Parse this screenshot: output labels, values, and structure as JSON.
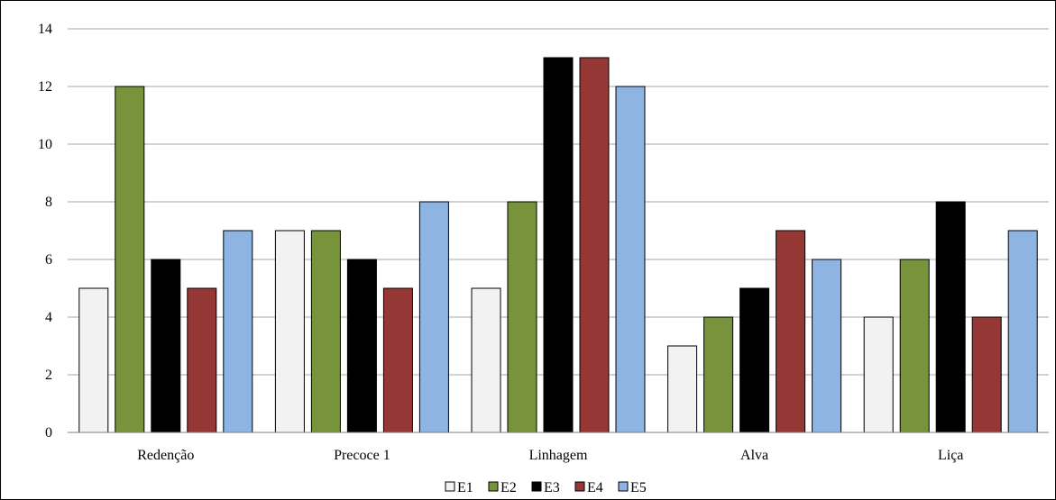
{
  "chart_data": {
    "type": "bar",
    "categories": [
      "Redenção",
      "Precoce 1",
      "Linhagem",
      "Alva",
      "Liça"
    ],
    "series": [
      {
        "name": "E1",
        "values": [
          5,
          7,
          5,
          3,
          4
        ],
        "color": "#f2f2f2"
      },
      {
        "name": "E2",
        "values": [
          12,
          7,
          8,
          4,
          6
        ],
        "color": "#77933c"
      },
      {
        "name": "E3",
        "values": [
          6,
          6,
          13,
          5,
          8
        ],
        "color": "#000000"
      },
      {
        "name": "E4",
        "values": [
          5,
          5,
          13,
          7,
          4
        ],
        "color": "#953735"
      },
      {
        "name": "E5",
        "values": [
          7,
          8,
          12,
          6,
          7
        ],
        "color": "#8eb4e3"
      }
    ],
    "ylim": [
      0,
      14
    ],
    "yticks": [
      0,
      2,
      4,
      6,
      8,
      10,
      12,
      14
    ],
    "grid": true,
    "legend_position": "bottom"
  }
}
